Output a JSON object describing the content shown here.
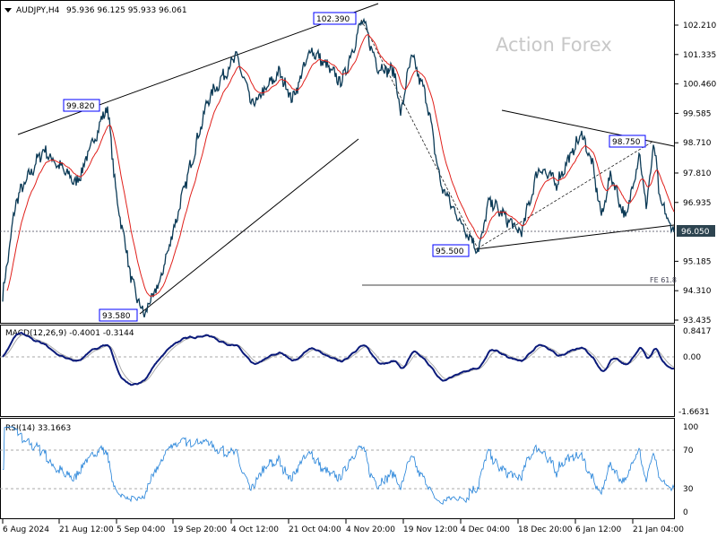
{
  "header": {
    "symbol": "AUDJPY,H4",
    "ohlc": "95.936 96.125 95.933 96.061"
  },
  "watermark": "Action Forex",
  "colors": {
    "price": "#0b3a56",
    "ma": "#e0201b",
    "macd": "#0a1a7a",
    "signal": "#aaaaaa",
    "rsi": "#1e7fd8",
    "grid": "#aaaaaa"
  },
  "chart_data": [
    {
      "type": "line",
      "title": "AUDJPY,H4",
      "price_axis_ticks": [
        "102.210",
        "101.335",
        "100.460",
        "99.585",
        "98.710",
        "97.810",
        "96.935",
        "95.185",
        "94.310",
        "93.435"
      ],
      "ylim": [
        93.435,
        102.21
      ],
      "current_price_label": "96.050",
      "annotations": [
        "102.390",
        "99.820",
        "93.580",
        "95.500",
        "98.750",
        "FE 61.8"
      ],
      "x_tick_labels": [
        "6 Aug 2024",
        "21 Aug 12:00",
        "5 Sep 04:00",
        "19 Sep 20:00",
        "4 Oct 12:00",
        "21 Oct 04:00",
        "4 Nov 20:00",
        "19 Nov 12:00",
        "4 Dec 04:00",
        "18 Dec 20:00",
        "6 Jan 12:00",
        "21 Jan 04:00"
      ],
      "price_pivots": [
        [
          0,
          94.16
        ],
        [
          2,
          97.0
        ],
        [
          6,
          98.5
        ],
        [
          11,
          97.5
        ],
        [
          15.6,
          99.82
        ],
        [
          17,
          97.0
        ],
        [
          18,
          96.0
        ],
        [
          19.3,
          94.5
        ],
        [
          21,
          93.58
        ],
        [
          23.3,
          94.5
        ],
        [
          26.6,
          97.0
        ],
        [
          30.6,
          100.0
        ],
        [
          34.8,
          101.3
        ],
        [
          37.2,
          99.8
        ],
        [
          41.2,
          100.8
        ],
        [
          43.2,
          100.0
        ],
        [
          45.9,
          101.5
        ],
        [
          50.5,
          100.5
        ],
        [
          53.6,
          102.39
        ],
        [
          55.8,
          101.0
        ],
        [
          58.5,
          100.8
        ],
        [
          59.2,
          99.5
        ],
        [
          60.9,
          101.3
        ],
        [
          63.2,
          100.0
        ],
        [
          65.2,
          97.5
        ],
        [
          67.8,
          96.5
        ],
        [
          70.9,
          95.5
        ],
        [
          72.5,
          97.0
        ],
        [
          77.2,
          96.0
        ],
        [
          79.9,
          98.0
        ],
        [
          82.5,
          97.5
        ],
        [
          86.3,
          99.0
        ],
        [
          87.9,
          98.0
        ],
        [
          89.2,
          96.5
        ],
        [
          90.6,
          97.8
        ],
        [
          92.8,
          96.4
        ],
        [
          94.8,
          98.4
        ],
        [
          95.9,
          96.8
        ],
        [
          97,
          98.7
        ],
        [
          97.9,
          97.0
        ],
        [
          100,
          96.0
        ]
      ]
    },
    {
      "type": "line",
      "title": "MACD(12,26,9) -0.4001 -0.3144",
      "ticks": [
        "0.8417",
        "0.00",
        "-1.6631"
      ],
      "ylim": [
        -1.6631,
        0.8417
      ]
    },
    {
      "type": "line",
      "title": "RSI(14) 33.1663",
      "ticks": [
        "100",
        "70",
        "30",
        "0"
      ],
      "ylim": [
        0,
        100
      ]
    }
  ]
}
